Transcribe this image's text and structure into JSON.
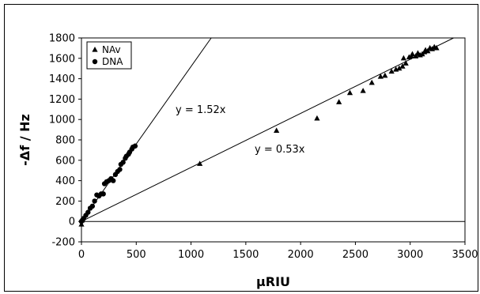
{
  "chart_data": {
    "type": "scatter",
    "xlabel": "μRIU",
    "ylabel": "-Δf / Hz",
    "xlim": [
      0,
      3500
    ],
    "ylim": [
      -200,
      1800
    ],
    "x_ticks": [
      "0",
      "500",
      "1000",
      "1500",
      "2000",
      "2500",
      "3000",
      "3500"
    ],
    "y_ticks": [
      "-200",
      "0",
      "200",
      "400",
      "600",
      "800",
      "1000",
      "1200",
      "1400",
      "1600",
      "1800"
    ],
    "grid": false,
    "legend_position": "top-left",
    "series": [
      {
        "name": "NAv",
        "marker": "triangle",
        "color": "#000000",
        "points": [
          [
            0,
            -30
          ],
          [
            5,
            10
          ],
          [
            1080,
            565
          ],
          [
            1780,
            890
          ],
          [
            2150,
            1010
          ],
          [
            2350,
            1170
          ],
          [
            2450,
            1260
          ],
          [
            2570,
            1280
          ],
          [
            2650,
            1360
          ],
          [
            2730,
            1420
          ],
          [
            2770,
            1430
          ],
          [
            2830,
            1470
          ],
          [
            2870,
            1490
          ],
          [
            2900,
            1500
          ],
          [
            2930,
            1520
          ],
          [
            2960,
            1550
          ],
          [
            2940,
            1600
          ],
          [
            2990,
            1610
          ],
          [
            3010,
            1620
          ],
          [
            3020,
            1640
          ],
          [
            3050,
            1620
          ],
          [
            3070,
            1650
          ],
          [
            3090,
            1630
          ],
          [
            3110,
            1640
          ],
          [
            3130,
            1660
          ],
          [
            3140,
            1680
          ],
          [
            3160,
            1670
          ],
          [
            3180,
            1700
          ],
          [
            3200,
            1690
          ],
          [
            3220,
            1710
          ],
          [
            3240,
            1700
          ]
        ]
      },
      {
        "name": "DNA",
        "marker": "circle",
        "color": "#000000",
        "points": [
          [
            0,
            0
          ],
          [
            10,
            15
          ],
          [
            20,
            30
          ],
          [
            40,
            60
          ],
          [
            60,
            90
          ],
          [
            80,
            130
          ],
          [
            100,
            150
          ],
          [
            120,
            200
          ],
          [
            140,
            260
          ],
          [
            160,
            250
          ],
          [
            180,
            270
          ],
          [
            200,
            270
          ],
          [
            210,
            370
          ],
          [
            230,
            390
          ],
          [
            250,
            400
          ],
          [
            270,
            420
          ],
          [
            290,
            400
          ],
          [
            310,
            460
          ],
          [
            330,
            490
          ],
          [
            350,
            510
          ],
          [
            360,
            560
          ],
          [
            380,
            580
          ],
          [
            400,
            620
          ],
          [
            410,
            640
          ],
          [
            430,
            660
          ],
          [
            440,
            680
          ],
          [
            460,
            710
          ],
          [
            470,
            730
          ],
          [
            490,
            740
          ]
        ]
      }
    ],
    "trendlines": [
      {
        "slope": 1.52,
        "label": "y = 1.52x"
      },
      {
        "slope": 0.53,
        "label": "y = 0.53x"
      }
    ]
  }
}
